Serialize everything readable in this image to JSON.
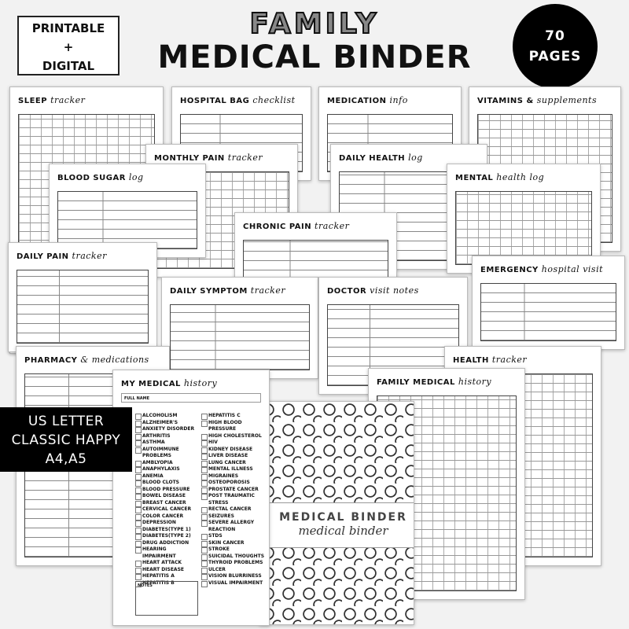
{
  "header": {
    "badge_lines": [
      "PRINTABLE",
      "+",
      "DIGITAL"
    ],
    "title_top": "FAMILY",
    "title_main": "MEDICAL BINDER",
    "pages_count": "70",
    "pages_label": "PAGES"
  },
  "format_label": [
    "US LETTER",
    "CLASSIC HAPPY",
    "A4,A5"
  ],
  "pages": {
    "sleep": {
      "title": "SLEEP",
      "script": "tracker"
    },
    "hospital_bag": {
      "title": "HOSPITAL BAG",
      "script": "checklist"
    },
    "medication": {
      "title": "MEDICATION",
      "script": "info"
    },
    "vitamins": {
      "title": "VITAMINS &",
      "script": "supplements"
    },
    "monthly_pain": {
      "title": "MONTHLY PAIN",
      "script": "tracker"
    },
    "daily_health": {
      "title": "DAILY HEALTH",
      "script": "log"
    },
    "blood_sugar": {
      "title": "BLOOD SUGAR",
      "script": "log"
    },
    "mental_health": {
      "title": "MENTAL",
      "script": "health log"
    },
    "chronic_pain": {
      "title": "CHRONIC PAIN",
      "script": "tracker"
    },
    "daily_pain": {
      "title": "DAILY PAIN",
      "script": "tracker"
    },
    "daily_symptom": {
      "title": "DAILY SYMPTOM",
      "script": "tracker"
    },
    "doctor": {
      "title": "DOCTOR",
      "script": "visit notes"
    },
    "emergency": {
      "title": "EMERGENCY",
      "script": "hospital visit"
    },
    "pharmacy": {
      "title": "PHARMACY",
      "script": "& medications"
    },
    "health_tracker": {
      "title": "HEALTH",
      "script": "tracker"
    },
    "medical_history": {
      "title": "MY MEDICAL",
      "script": "history",
      "full_name": "FULL NAME",
      "notes": "NOTES",
      "col1": [
        "ALCOHOLISM",
        "ALZHEIMER'S",
        "ANXIETY DISORDER",
        "ARTHRITIS",
        "ASTHMA",
        "AUTOIMMUNE PROBLEMS",
        "AMBLYOPIA",
        "ANAPHYLAXIS",
        "ANEMIA",
        "BLOOD CLOTS",
        "BLOOD PRESSURE",
        "BOWEL DISEASE",
        "BREAST CANCER",
        "CERVICAL CANCER",
        "COLOR CANCER",
        "DEPRESSION",
        "DIABETES(TYPE 1)",
        "DIABETES(TYPE 2)",
        "DRUG ADDICTION",
        "HEARING IMPAIRMENT",
        "HEART ATTACK",
        "HEART DISEASE",
        "HEPATITIS A",
        "HEPATITIS B"
      ],
      "col2": [
        "HEPATITIS C",
        "HIGH BLOOD PRESSURE",
        "HIGH CHOLESTEROL",
        "HIV",
        "KIDNEY DISEASE",
        "LIVER DISEASE",
        "LUNG CANCER",
        "MENTAL ILLNESS",
        "MIGRAINES",
        "OSTEOPOROSIS",
        "PROSTATE CANCER",
        "POST TRAUMATIC STRESS",
        "RECTAL CANCER",
        "SEIZURES",
        "SEVERE ALLERGY REACTION",
        "STDS",
        "SKIN CANCER",
        "STROKE",
        "SUICIDAL THOUGHTS",
        "THYROID PROBLEMS",
        "ULCER",
        "VISION BLURRINESS",
        "VISUAL IMPAIRMENT"
      ]
    },
    "family_history": {
      "title": "FAMILY MEDICAL",
      "script": "history"
    },
    "cover": {
      "title": "MEDICAL BINDER",
      "script": "medical binder"
    }
  }
}
